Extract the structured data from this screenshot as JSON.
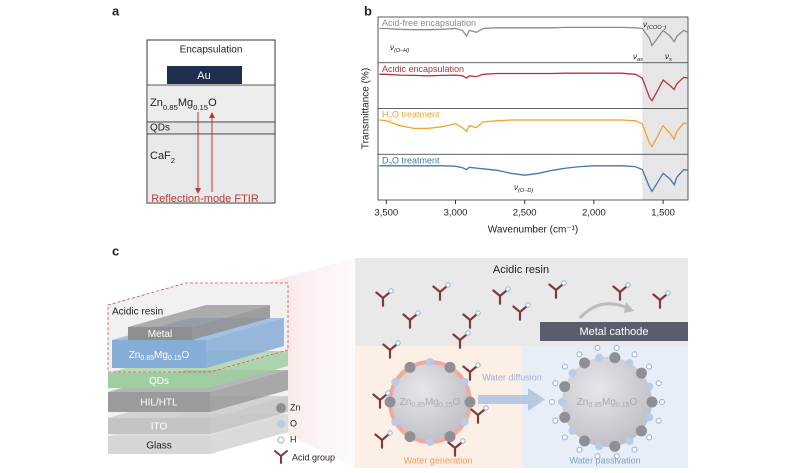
{
  "panel_a": {
    "label": "a",
    "encapsulation": "Encapsulation",
    "electrode": "Au",
    "layer_zmo": [
      "Zn",
      "0.85",
      "Mg",
      "0.15",
      "O"
    ],
    "layer_qds": "QDs",
    "substrate": [
      "CaF",
      "2"
    ],
    "method": "Reflection-mode FTIR"
  },
  "chart_data": {
    "type": "line",
    "label": "b",
    "y_label": "Transmittance (%)",
    "x_label": "Wavenumber (cm⁻¹)",
    "xlim": [
      3560,
      1320
    ],
    "ylim": [
      0,
      1
    ],
    "xticks": [
      {
        "value": 3500,
        "label": "3,500"
      },
      {
        "value": 3000,
        "label": "3,000"
      },
      {
        "value": 2500,
        "label": "2,500"
      },
      {
        "value": 2000,
        "label": "2,000"
      },
      {
        "value": 1500,
        "label": "1,500"
      }
    ],
    "shaded_range": [
      1650,
      1320
    ],
    "x": [
      3550,
      3500,
      3400,
      3300,
      3200,
      3100,
      3000,
      2950,
      2920,
      2900,
      2850,
      2800,
      2700,
      2600,
      2500,
      2400,
      2300,
      2200,
      2100,
      2000,
      1900,
      1800,
      1700,
      1650,
      1600,
      1580,
      1550,
      1500,
      1450,
      1420,
      1400,
      1350,
      1320
    ],
    "series": [
      {
        "name": [
          "Acid-free encapsulation"
        ],
        "color": "#8c8c8c",
        "values": [
          0.8,
          0.8,
          0.78,
          0.77,
          0.77,
          0.78,
          0.8,
          0.75,
          0.6,
          0.75,
          0.7,
          0.8,
          0.82,
          0.82,
          0.82,
          0.82,
          0.82,
          0.83,
          0.83,
          0.83,
          0.83,
          0.83,
          0.82,
          0.8,
          0.55,
          0.35,
          0.5,
          0.75,
          0.6,
          0.45,
          0.6,
          0.75,
          0.7
        ]
      },
      {
        "name": [
          "Acidic encapsulation"
        ],
        "color": "#b5343c",
        "values": [
          0.8,
          0.8,
          0.78,
          0.77,
          0.76,
          0.77,
          0.78,
          0.76,
          0.7,
          0.76,
          0.74,
          0.8,
          0.82,
          0.82,
          0.82,
          0.82,
          0.82,
          0.83,
          0.83,
          0.83,
          0.83,
          0.83,
          0.8,
          0.7,
          0.2,
          0.1,
          0.3,
          0.65,
          0.5,
          0.4,
          0.55,
          0.72,
          0.7
        ]
      },
      {
        "name": [
          "H",
          "2",
          "O treatment"
        ],
        "color": "#eea52c",
        "values": [
          0.8,
          0.78,
          0.65,
          0.58,
          0.58,
          0.62,
          0.7,
          0.6,
          0.5,
          0.65,
          0.6,
          0.75,
          0.78,
          0.8,
          0.8,
          0.8,
          0.8,
          0.8,
          0.8,
          0.8,
          0.8,
          0.8,
          0.78,
          0.7,
          0.2,
          0.1,
          0.3,
          0.65,
          0.45,
          0.3,
          0.5,
          0.72,
          0.7
        ]
      },
      {
        "name": [
          "D",
          "2",
          "O treatment"
        ],
        "color": "#3f79a8",
        "values": [
          0.8,
          0.8,
          0.8,
          0.8,
          0.8,
          0.8,
          0.79,
          0.75,
          0.7,
          0.76,
          0.74,
          0.72,
          0.68,
          0.6,
          0.55,
          0.6,
          0.68,
          0.74,
          0.78,
          0.8,
          0.8,
          0.8,
          0.78,
          0.7,
          0.25,
          0.12,
          0.3,
          0.6,
          0.45,
          0.3,
          0.5,
          0.7,
          0.68
        ]
      }
    ],
    "annotations": {
      "oh": [
        "ν",
        "(O–H)"
      ],
      "coo": [
        "ν",
        "(COO⁻)"
      ],
      "as": [
        "ν",
        "as"
      ],
      "s": [
        "ν",
        "s"
      ],
      "od": [
        "ν",
        "(O–D)"
      ]
    }
  },
  "panel_c": {
    "label": "c",
    "stack": {
      "resin": "Acidic resin",
      "metal": "Metal",
      "zmo": [
        "Zn",
        "0.85",
        "Mg",
        "0.15",
        "O"
      ],
      "qds": "QDs",
      "hil": "HIL/HTL",
      "ito": "ITO",
      "glass": "Glass"
    },
    "legend": {
      "zn": "Zn",
      "o": "O",
      "h": "H",
      "acid": "Acid group"
    },
    "scheme": {
      "resin": "Acidic resin",
      "cathode": "Metal cathode",
      "diffusion": "Water diffusion",
      "left_particle": [
        "Zn",
        "0.85",
        "Mg",
        "0.15",
        "O"
      ],
      "right_particle": [
        "Zn",
        "0.85",
        "Mg",
        "0.15",
        "O"
      ],
      "generation": "Water generation",
      "passivation": "Water passivation"
    }
  }
}
